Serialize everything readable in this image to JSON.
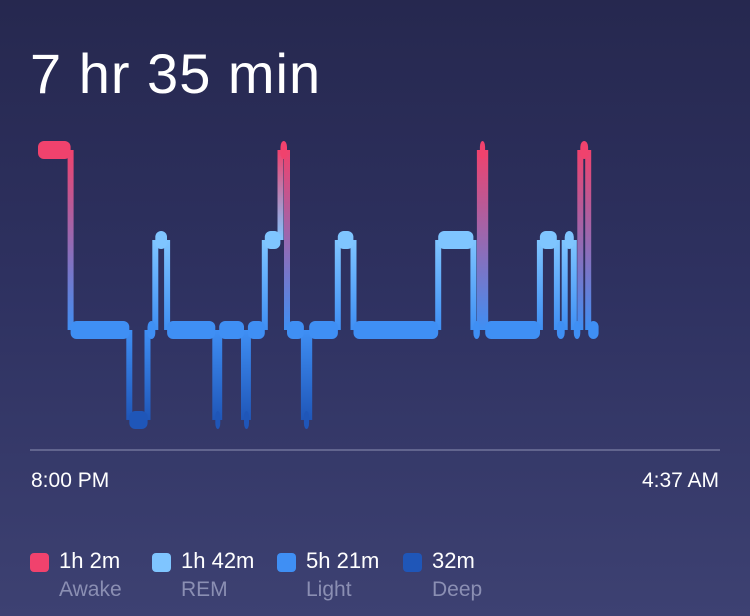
{
  "summary": {
    "total_sleep": "7 hr 35 min"
  },
  "chart_data": {
    "type": "sleep-stages",
    "stages": [
      "Awake",
      "REM",
      "Light",
      "Deep"
    ],
    "colors": {
      "Awake": "#f0426d",
      "REM": "#7fc5ff",
      "Light": "#3f8ff4",
      "Deep": "#1f56b8"
    },
    "x_start": "8:00 PM",
    "x_end": "4:37 AM",
    "total_minutes": 517,
    "segments": [
      {
        "stage": "Awake",
        "start": 0,
        "end": 25
      },
      {
        "stage": "Light",
        "start": 25,
        "end": 70
      },
      {
        "stage": "Deep",
        "start": 70,
        "end": 84
      },
      {
        "stage": "Light",
        "start": 84,
        "end": 90
      },
      {
        "stage": "REM",
        "start": 90,
        "end": 99
      },
      {
        "stage": "Light",
        "start": 99,
        "end": 136
      },
      {
        "stage": "Deep",
        "start": 136,
        "end": 139
      },
      {
        "stage": "Light",
        "start": 139,
        "end": 158
      },
      {
        "stage": "Deep",
        "start": 158,
        "end": 161
      },
      {
        "stage": "Light",
        "start": 161,
        "end": 174
      },
      {
        "stage": "REM",
        "start": 174,
        "end": 186
      },
      {
        "stage": "Awake",
        "start": 186,
        "end": 191
      },
      {
        "stage": "Light",
        "start": 191,
        "end": 204
      },
      {
        "stage": "Deep",
        "start": 204,
        "end": 208
      },
      {
        "stage": "Light",
        "start": 208,
        "end": 230
      },
      {
        "stage": "REM",
        "start": 230,
        "end": 242
      },
      {
        "stage": "Light",
        "start": 242,
        "end": 307
      },
      {
        "stage": "REM",
        "start": 307,
        "end": 334
      },
      {
        "stage": "Light",
        "start": 334,
        "end": 339
      },
      {
        "stage": "Awake",
        "start": 339,
        "end": 343
      },
      {
        "stage": "Light",
        "start": 343,
        "end": 385
      },
      {
        "stage": "REM",
        "start": 385,
        "end": 398
      },
      {
        "stage": "Light",
        "start": 398,
        "end": 404
      },
      {
        "stage": "REM",
        "start": 404,
        "end": 411
      },
      {
        "stage": "Light",
        "start": 411,
        "end": 416
      },
      {
        "stage": "Awake",
        "start": 416,
        "end": 422
      },
      {
        "stage": "Light",
        "start": 422,
        "end": 430
      }
    ]
  },
  "legend": [
    {
      "stage": "Awake",
      "value": "1h 2m",
      "label": "Awake",
      "color": "#f0426d"
    },
    {
      "stage": "REM",
      "value": "1h 42m",
      "label": "REM",
      "color": "#7fc5ff"
    },
    {
      "stage": "Light",
      "value": "5h 21m",
      "label": "Light",
      "color": "#3f8ff4"
    },
    {
      "stage": "Deep",
      "value": "32m",
      "label": "Deep",
      "color": "#1f56b8"
    }
  ]
}
